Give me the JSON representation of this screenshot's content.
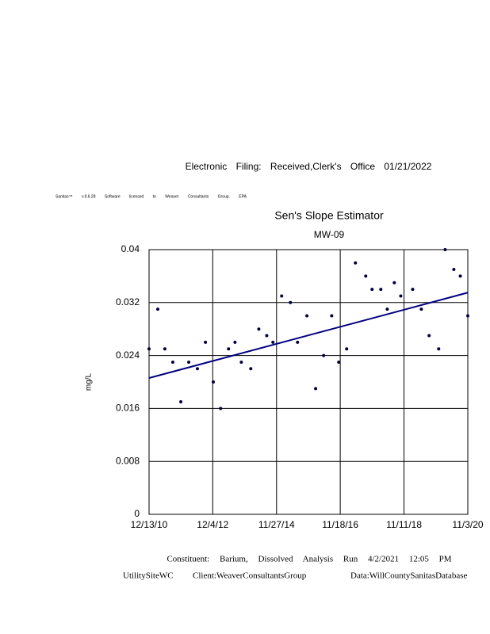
{
  "header": {
    "filing": "Electronic Filing: Received,Clerk's Office 01/21/2022",
    "software": "Sanitas™ v.9.6.28 Software licensed to Weaver Consultants Group. EPA"
  },
  "chart_data": {
    "type": "scatter",
    "title": "Sen's Slope Estimator",
    "subtitle": "MW-09",
    "y_label": "mg/L",
    "x": [
      "2010-12-13",
      "2011-03-22",
      "2011-06-10",
      "2011-09-08",
      "2011-12-08",
      "2012-03-07",
      "2012-06-13",
      "2012-09-12",
      "2012-12-10",
      "2013-03-03",
      "2013-06-01",
      "2013-08-13",
      "2013-10-24",
      "2014-02-08",
      "2014-05-10",
      "2014-08-08",
      "2014-10-17",
      "2015-01-24",
      "2015-05-03",
      "2015-07-23",
      "2015-11-06",
      "2016-02-13",
      "2016-05-14",
      "2016-08-13",
      "2016-11-01",
      "2017-01-30",
      "2017-05-09",
      "2017-09-03",
      "2017-11-14",
      "2018-02-21",
      "2018-05-05",
      "2018-07-24",
      "2018-10-05",
      "2019-02-17",
      "2019-05-26",
      "2019-08-22",
      "2019-12-09",
      "2020-02-20",
      "2020-05-29",
      "2020-08-10",
      "2020-11-03"
    ],
    "values": [
      0.025,
      0.031,
      0.025,
      0.023,
      0.017,
      0.023,
      0.022,
      0.026,
      0.02,
      0.016,
      0.025,
      0.026,
      0.023,
      0.022,
      0.028,
      0.027,
      0.026,
      0.033,
      0.032,
      0.026,
      0.03,
      0.019,
      0.024,
      0.03,
      0.023,
      0.025,
      0.038,
      0.036,
      0.034,
      0.034,
      0.031,
      0.035,
      0.033,
      0.034,
      0.031,
      0.027,
      0.025,
      0.04,
      0.037,
      0.036,
      0.03
    ],
    "color": "#000040",
    "trend": {
      "x": [
        "2010-12-13",
        "2020-11-03"
      ],
      "values": [
        0.0206,
        0.0335
      ],
      "color": "#000080"
    },
    "xlim": [
      "2010-12-13",
      "2020-11-03"
    ],
    "xticks": [
      {
        "value": "2010-12-13",
        "label": "12/13/10"
      },
      {
        "value": "2012-12-04",
        "label": "12/4/12"
      },
      {
        "value": "2014-11-27",
        "label": "11/27/14"
      },
      {
        "value": "2016-11-18",
        "label": "11/18/16"
      },
      {
        "value": "2018-11-11",
        "label": "11/11/18"
      },
      {
        "value": "2020-11-03",
        "label": "11/3/20"
      }
    ],
    "ylim": [
      0,
      0.04
    ],
    "yticks": [
      0,
      0.008,
      0.016,
      0.024,
      0.032,
      0.04
    ],
    "grid": true
  },
  "footer": {
    "constituent": "Constituent: Barium, Dissolved Analysis Run 4/2/2021 12:05 PM",
    "site": "UtilitySiteWC",
    "client": "Client:WeaverConsultantsGroup",
    "database": "Data:WillCountySanitasDatabase"
  }
}
